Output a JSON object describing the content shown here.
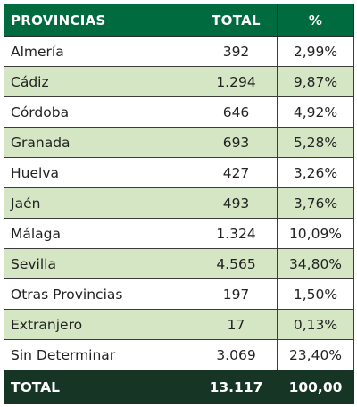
{
  "header": {
    "provinces_label": "PROVINCIAS",
    "total_label": "TOTAL",
    "percent_label": "%"
  },
  "rows": [
    {
      "name": "Almería",
      "total": "392",
      "percent": "2,99%"
    },
    {
      "name": "Cádiz",
      "total": "1.294",
      "percent": "9,87%"
    },
    {
      "name": "Córdoba",
      "total": "646",
      "percent": "4,92%"
    },
    {
      "name": "Granada",
      "total": "693",
      "percent": "5,28%"
    },
    {
      "name": "Huelva",
      "total": "427",
      "percent": "3,26%"
    },
    {
      "name": "Jaén",
      "total": "493",
      "percent": "3,76%"
    },
    {
      "name": "Málaga",
      "total": "1.324",
      "percent": "10,09%"
    },
    {
      "name": "Sevilla",
      "total": "4.565",
      "percent": "34,80%"
    },
    {
      "name": "Otras Provincias",
      "total": "197",
      "percent": "1,50%"
    },
    {
      "name": "Extranjero",
      "total": "17",
      "percent": "0,13%"
    },
    {
      "name": "Sin Determinar",
      "total": "3.069",
      "percent": "23,40%"
    }
  ],
  "footer": {
    "label": "TOTAL",
    "total": "13.117",
    "percent": "100,00"
  },
  "colors": {
    "header_bg": "#006b3e",
    "row_alt_bg": "#d4e6c3",
    "footer_bg": "#163524",
    "border": "#3c3c3c"
  }
}
